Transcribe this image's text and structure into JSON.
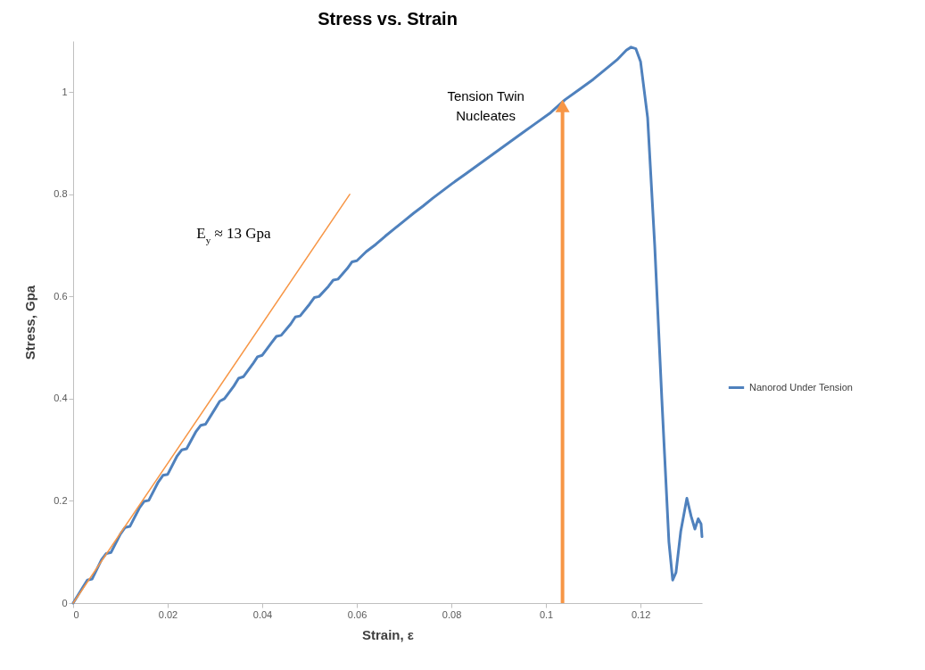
{
  "chart_data": {
    "type": "line",
    "title": "Stress vs. Strain",
    "xlabel": "Strain, ε",
    "ylabel": "Stress, Gpa",
    "xlim": [
      0,
      0.133
    ],
    "ylim": [
      0,
      1.1
    ],
    "xticks": [
      0,
      0.02,
      0.04,
      0.06,
      0.08,
      0.1,
      0.12
    ],
    "yticks": [
      0,
      0.2,
      0.4,
      0.6,
      0.8,
      1
    ],
    "grid": false,
    "legend": "right",
    "marker": "none",
    "line_style": "solid",
    "annotations": [
      "E$_{y}$ ≈ 13 Gpa",
      {
        "text": "Tension Twin\nNucleates",
        "x": 0.1035,
        "y": 0.985
      }
    ],
    "series": [
      {
        "name": "Nanorod Under Tension",
        "color": "#4f81bd",
        "x": [
          0,
          0.002,
          0.003,
          0.004,
          0.006,
          0.007,
          0.008,
          0.01,
          0.011,
          0.012,
          0.014,
          0.015,
          0.016,
          0.018,
          0.019,
          0.02,
          0.022,
          0.023,
          0.024,
          0.026,
          0.027,
          0.028,
          0.03,
          0.031,
          0.032,
          0.034,
          0.035,
          0.036,
          0.038,
          0.039,
          0.04,
          0.042,
          0.043,
          0.044,
          0.046,
          0.047,
          0.048,
          0.05,
          0.051,
          0.052,
          0.054,
          0.055,
          0.056,
          0.058,
          0.059,
          0.06,
          0.062,
          0.064,
          0.066,
          0.068,
          0.07,
          0.072,
          0.074,
          0.076,
          0.078,
          0.08,
          0.083,
          0.086,
          0.089,
          0.092,
          0.095,
          0.098,
          0.101,
          0.104,
          0.107,
          0.11,
          0.113,
          0.115,
          0.117,
          0.118,
          0.119,
          0.12,
          0.1215,
          0.123,
          0.1245,
          0.126,
          0.1268,
          0.1275,
          0.1285,
          0.1298,
          0.1307,
          0.1315,
          0.1322,
          0.1328,
          0.133
        ],
        "values": [
          0,
          0.03,
          0.045,
          0.047,
          0.085,
          0.097,
          0.099,
          0.135,
          0.148,
          0.15,
          0.186,
          0.199,
          0.201,
          0.237,
          0.25,
          0.252,
          0.288,
          0.3,
          0.302,
          0.336,
          0.348,
          0.35,
          0.38,
          0.395,
          0.4,
          0.425,
          0.44,
          0.443,
          0.468,
          0.482,
          0.485,
          0.51,
          0.522,
          0.524,
          0.546,
          0.56,
          0.562,
          0.585,
          0.598,
          0.6,
          0.62,
          0.632,
          0.634,
          0.655,
          0.668,
          0.67,
          0.688,
          0.702,
          0.718,
          0.733,
          0.748,
          0.763,
          0.777,
          0.792,
          0.806,
          0.82,
          0.84,
          0.86,
          0.88,
          0.9,
          0.92,
          0.94,
          0.96,
          0.985,
          1.005,
          1.025,
          1.048,
          1.063,
          1.082,
          1.088,
          1.085,
          1.06,
          0.95,
          0.7,
          0.4,
          0.12,
          0.045,
          0.06,
          0.14,
          0.205,
          0.17,
          0.145,
          0.165,
          0.155,
          0.13
        ]
      },
      {
        "color": "#f79646",
        "x": [
          0,
          0.0585
        ],
        "values": [
          0,
          0.8
        ]
      }
    ]
  }
}
